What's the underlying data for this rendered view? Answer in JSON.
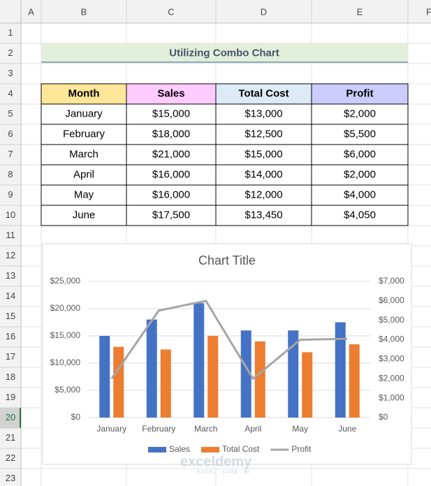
{
  "sheet": {
    "columns": [
      "A",
      "B",
      "C",
      "D",
      "E",
      "F"
    ],
    "rows": [
      1,
      2,
      3,
      4,
      5,
      6,
      7,
      8,
      9,
      10,
      11,
      12,
      13,
      14,
      15,
      16,
      17,
      18,
      19,
      20,
      21,
      22,
      23
    ]
  },
  "title": "Utilizing Combo Chart",
  "table": {
    "header": [
      "Month",
      "Sales",
      "Total Cost",
      "Profit"
    ],
    "rows": [
      [
        "January",
        "$15,000",
        "$13,000",
        "$2,000"
      ],
      [
        "February",
        "$18,000",
        "$12,500",
        "$5,500"
      ],
      [
        "March",
        "$21,000",
        "$15,000",
        "$6,000"
      ],
      [
        "April",
        "$16,000",
        "$14,000",
        "$2,000"
      ],
      [
        "May",
        "$16,000",
        "$12,000",
        "$4,000"
      ],
      [
        "June",
        "$17,500",
        "$13,450",
        "$4,050"
      ]
    ]
  },
  "chart_data": {
    "type": "combo",
    "title": "Chart Title",
    "categories": [
      "January",
      "February",
      "March",
      "April",
      "May",
      "June"
    ],
    "series": [
      {
        "name": "Sales",
        "type": "bar",
        "color": "#4472c4",
        "values": [
          15000,
          18000,
          21000,
          16000,
          16000,
          17500
        ]
      },
      {
        "name": "Total Cost",
        "type": "bar",
        "color": "#ed7d31",
        "values": [
          13000,
          12500,
          15000,
          14000,
          12000,
          13450
        ]
      },
      {
        "name": "Profit",
        "type": "line",
        "axis": "y2",
        "color": "#a5a5a5",
        "values": [
          2000,
          5500,
          6000,
          2000,
          4000,
          4050
        ]
      }
    ],
    "ylim": [
      0,
      25000
    ],
    "yticks": [
      {
        "value": 0,
        "label": "$0"
      },
      {
        "value": 5000,
        "label": "$5,000"
      },
      {
        "value": 10000,
        "label": "$10,000"
      },
      {
        "value": 15000,
        "label": "$15,000"
      },
      {
        "value": 20000,
        "label": "$20,000"
      },
      {
        "value": 25000,
        "label": "$25,000"
      }
    ],
    "y2lim": [
      0,
      7000
    ],
    "y2ticks": [
      {
        "value": 0,
        "label": "$0"
      },
      {
        "value": 1000,
        "label": "$1,000"
      },
      {
        "value": 2000,
        "label": "$2,000"
      },
      {
        "value": 3000,
        "label": "$3,000"
      },
      {
        "value": 4000,
        "label": "$4,000"
      },
      {
        "value": 5000,
        "label": "$5,000"
      },
      {
        "value": 6000,
        "label": "$6,000"
      },
      {
        "value": 7000,
        "label": "$7,000"
      }
    ],
    "grid": true,
    "legend": "bottom"
  },
  "watermark": {
    "name": "exceldemy",
    "tagline": "EXCEL · DATA · BI"
  }
}
